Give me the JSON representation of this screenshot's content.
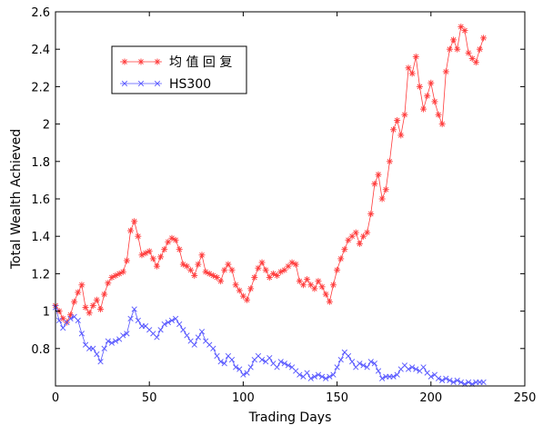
{
  "chart_data": {
    "type": "line",
    "xlabel": "Trading Days",
    "ylabel": "Total Wealth Achieved",
    "xlim": [
      0,
      250
    ],
    "ylim": [
      0.6,
      2.6
    ],
    "x_ticks": [
      0,
      50,
      100,
      150,
      200,
      250
    ],
    "x_tick_labels": [
      "0",
      "50",
      "100",
      "150",
      "200",
      "250"
    ],
    "y_ticks": [
      0.8,
      1.0,
      1.2,
      1.4,
      1.6,
      1.8,
      2.0,
      2.2,
      2.4,
      2.6
    ],
    "y_tick_labels": [
      "0.8",
      "1",
      "1.2",
      "1.4",
      "1.6",
      "1.8",
      "2",
      "2.2",
      "2.4",
      "2.6"
    ],
    "grid": false,
    "legend_position": "top-left",
    "colors": {
      "series1": "#ff3b3b",
      "series2": "#5555ff",
      "axis": "#000000"
    },
    "series": [
      {
        "name": "均 值 回 复",
        "marker": "*",
        "points": [
          [
            0,
            1.03
          ],
          [
            2,
            1.0
          ],
          [
            4,
            0.96
          ],
          [
            6,
            0.94
          ],
          [
            8,
            0.98
          ],
          [
            10,
            1.05
          ],
          [
            12,
            1.1
          ],
          [
            14,
            1.14
          ],
          [
            16,
            1.02
          ],
          [
            18,
            0.99
          ],
          [
            20,
            1.03
          ],
          [
            22,
            1.06
          ],
          [
            24,
            1.01
          ],
          [
            26,
            1.09
          ],
          [
            28,
            1.15
          ],
          [
            30,
            1.18
          ],
          [
            32,
            1.19
          ],
          [
            34,
            1.2
          ],
          [
            36,
            1.21
          ],
          [
            38,
            1.27
          ],
          [
            40,
            1.43
          ],
          [
            42,
            1.48
          ],
          [
            44,
            1.4
          ],
          [
            46,
            1.3
          ],
          [
            48,
            1.31
          ],
          [
            50,
            1.32
          ],
          [
            52,
            1.28
          ],
          [
            54,
            1.24
          ],
          [
            56,
            1.29
          ],
          [
            58,
            1.33
          ],
          [
            60,
            1.37
          ],
          [
            62,
            1.39
          ],
          [
            64,
            1.38
          ],
          [
            66,
            1.33
          ],
          [
            68,
            1.25
          ],
          [
            70,
            1.24
          ],
          [
            72,
            1.22
          ],
          [
            74,
            1.19
          ],
          [
            76,
            1.25
          ],
          [
            78,
            1.3
          ],
          [
            80,
            1.21
          ],
          [
            82,
            1.2
          ],
          [
            84,
            1.19
          ],
          [
            86,
            1.18
          ],
          [
            88,
            1.16
          ],
          [
            90,
            1.22
          ],
          [
            92,
            1.25
          ],
          [
            94,
            1.22
          ],
          [
            96,
            1.14
          ],
          [
            98,
            1.11
          ],
          [
            100,
            1.08
          ],
          [
            102,
            1.06
          ],
          [
            104,
            1.12
          ],
          [
            106,
            1.18
          ],
          [
            108,
            1.23
          ],
          [
            110,
            1.26
          ],
          [
            112,
            1.22
          ],
          [
            114,
            1.18
          ],
          [
            116,
            1.2
          ],
          [
            118,
            1.19
          ],
          [
            120,
            1.21
          ],
          [
            122,
            1.22
          ],
          [
            124,
            1.24
          ],
          [
            126,
            1.26
          ],
          [
            128,
            1.25
          ],
          [
            130,
            1.16
          ],
          [
            132,
            1.14
          ],
          [
            134,
            1.17
          ],
          [
            136,
            1.14
          ],
          [
            138,
            1.12
          ],
          [
            140,
            1.16
          ],
          [
            142,
            1.13
          ],
          [
            144,
            1.09
          ],
          [
            146,
            1.05
          ],
          [
            148,
            1.14
          ],
          [
            150,
            1.22
          ],
          [
            152,
            1.28
          ],
          [
            154,
            1.33
          ],
          [
            156,
            1.38
          ],
          [
            158,
            1.4
          ],
          [
            160,
            1.42
          ],
          [
            162,
            1.36
          ],
          [
            164,
            1.4
          ],
          [
            166,
            1.42
          ],
          [
            168,
            1.52
          ],
          [
            170,
            1.68
          ],
          [
            172,
            1.73
          ],
          [
            174,
            1.6
          ],
          [
            176,
            1.65
          ],
          [
            178,
            1.8
          ],
          [
            180,
            1.97
          ],
          [
            182,
            2.02
          ],
          [
            184,
            1.94
          ],
          [
            186,
            2.05
          ],
          [
            188,
            2.3
          ],
          [
            190,
            2.27
          ],
          [
            192,
            2.36
          ],
          [
            194,
            2.2
          ],
          [
            196,
            2.08
          ],
          [
            198,
            2.15
          ],
          [
            200,
            2.22
          ],
          [
            202,
            2.12
          ],
          [
            204,
            2.05
          ],
          [
            206,
            2.0
          ],
          [
            208,
            2.28
          ],
          [
            210,
            2.4
          ],
          [
            212,
            2.45
          ],
          [
            214,
            2.4
          ],
          [
            216,
            2.52
          ],
          [
            218,
            2.5
          ],
          [
            220,
            2.38
          ],
          [
            222,
            2.35
          ],
          [
            224,
            2.33
          ],
          [
            226,
            2.4
          ],
          [
            228,
            2.46
          ]
        ]
      },
      {
        "name": "HS300",
        "marker": "x",
        "points": [
          [
            0,
            1.02
          ],
          [
            2,
            0.95
          ],
          [
            4,
            0.91
          ],
          [
            6,
            0.94
          ],
          [
            8,
            0.96
          ],
          [
            10,
            0.97
          ],
          [
            12,
            0.95
          ],
          [
            14,
            0.88
          ],
          [
            16,
            0.82
          ],
          [
            18,
            0.8
          ],
          [
            20,
            0.8
          ],
          [
            22,
            0.77
          ],
          [
            24,
            0.73
          ],
          [
            26,
            0.8
          ],
          [
            28,
            0.84
          ],
          [
            30,
            0.83
          ],
          [
            32,
            0.84
          ],
          [
            34,
            0.85
          ],
          [
            36,
            0.87
          ],
          [
            38,
            0.88
          ],
          [
            40,
            0.96
          ],
          [
            42,
            1.01
          ],
          [
            44,
            0.95
          ],
          [
            46,
            0.92
          ],
          [
            48,
            0.92
          ],
          [
            50,
            0.9
          ],
          [
            52,
            0.88
          ],
          [
            54,
            0.86
          ],
          [
            56,
            0.9
          ],
          [
            58,
            0.93
          ],
          [
            60,
            0.94
          ],
          [
            62,
            0.95
          ],
          [
            64,
            0.96
          ],
          [
            66,
            0.93
          ],
          [
            68,
            0.9
          ],
          [
            70,
            0.87
          ],
          [
            72,
            0.84
          ],
          [
            74,
            0.82
          ],
          [
            76,
            0.86
          ],
          [
            78,
            0.89
          ],
          [
            80,
            0.84
          ],
          [
            82,
            0.82
          ],
          [
            84,
            0.8
          ],
          [
            86,
            0.76
          ],
          [
            88,
            0.73
          ],
          [
            90,
            0.72
          ],
          [
            92,
            0.76
          ],
          [
            94,
            0.74
          ],
          [
            96,
            0.7
          ],
          [
            98,
            0.69
          ],
          [
            100,
            0.66
          ],
          [
            102,
            0.67
          ],
          [
            104,
            0.7
          ],
          [
            106,
            0.74
          ],
          [
            108,
            0.76
          ],
          [
            110,
            0.74
          ],
          [
            112,
            0.73
          ],
          [
            114,
            0.75
          ],
          [
            116,
            0.72
          ],
          [
            118,
            0.7
          ],
          [
            120,
            0.73
          ],
          [
            122,
            0.72
          ],
          [
            124,
            0.71
          ],
          [
            126,
            0.7
          ],
          [
            128,
            0.68
          ],
          [
            130,
            0.66
          ],
          [
            132,
            0.65
          ],
          [
            134,
            0.67
          ],
          [
            136,
            0.64
          ],
          [
            138,
            0.65
          ],
          [
            140,
            0.66
          ],
          [
            142,
            0.65
          ],
          [
            144,
            0.64
          ],
          [
            146,
            0.65
          ],
          [
            148,
            0.66
          ],
          [
            150,
            0.7
          ],
          [
            152,
            0.74
          ],
          [
            154,
            0.78
          ],
          [
            156,
            0.76
          ],
          [
            158,
            0.73
          ],
          [
            160,
            0.7
          ],
          [
            162,
            0.72
          ],
          [
            164,
            0.71
          ],
          [
            166,
            0.7
          ],
          [
            168,
            0.73
          ],
          [
            170,
            0.72
          ],
          [
            172,
            0.68
          ],
          [
            174,
            0.64
          ],
          [
            176,
            0.65
          ],
          [
            178,
            0.65
          ],
          [
            180,
            0.65
          ],
          [
            182,
            0.66
          ],
          [
            184,
            0.69
          ],
          [
            186,
            0.71
          ],
          [
            188,
            0.69
          ],
          [
            190,
            0.7
          ],
          [
            192,
            0.69
          ],
          [
            194,
            0.68
          ],
          [
            196,
            0.7
          ],
          [
            198,
            0.67
          ],
          [
            200,
            0.65
          ],
          [
            202,
            0.66
          ],
          [
            204,
            0.64
          ],
          [
            206,
            0.63
          ],
          [
            208,
            0.64
          ],
          [
            210,
            0.63
          ],
          [
            212,
            0.62
          ],
          [
            214,
            0.63
          ],
          [
            216,
            0.62
          ],
          [
            218,
            0.61
          ],
          [
            220,
            0.62
          ],
          [
            222,
            0.61
          ],
          [
            224,
            0.62
          ],
          [
            226,
            0.62
          ],
          [
            228,
            0.62
          ]
        ]
      }
    ]
  }
}
